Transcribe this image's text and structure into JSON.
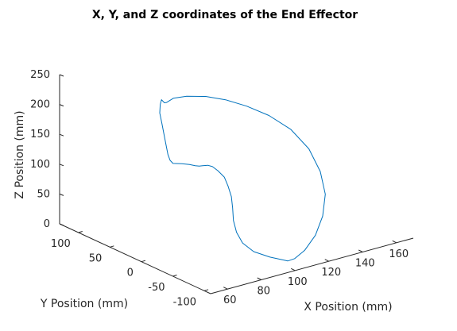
{
  "chart_data": {
    "type": "line",
    "title": "X, Y, and Z coordinates of the End Effector",
    "xlabel": "X Position (mm)",
    "ylabel": "Y Position (mm)",
    "zlabel": "Z Position (mm)",
    "xlim": [
      50,
      170
    ],
    "ylim": [
      -110,
      130
    ],
    "zlim": [
      0,
      250
    ],
    "x_ticks": [
      "60",
      "80",
      "100",
      "120",
      "140",
      "160"
    ],
    "y_ticks": [
      "-100",
      "-50",
      "0",
      "50",
      "100"
    ],
    "z_ticks": [
      "0",
      "50",
      "100",
      "150",
      "200",
      "250"
    ],
    "grid": false,
    "line_color": "#0072BD",
    "series": [
      {
        "points": [
          [
            105,
            -85,
            0
          ],
          [
            100,
            -70,
            3
          ],
          [
            96,
            -55,
            8
          ],
          [
            95,
            -40,
            16
          ],
          [
            97,
            -25,
            25
          ],
          [
            100,
            -12,
            36
          ],
          [
            104,
            0,
            48
          ],
          [
            107,
            10,
            60
          ],
          [
            108,
            18,
            73
          ],
          [
            108,
            24,
            85
          ],
          [
            105,
            26,
            97
          ],
          [
            101,
            24,
            108
          ],
          [
            96,
            18,
            117
          ],
          [
            90,
            10,
            125
          ],
          [
            85,
            2,
            132
          ],
          [
            80,
            -5,
            140
          ],
          [
            74,
            -12,
            150
          ],
          [
            68,
            -16,
            158
          ],
          [
            62,
            -18,
            164
          ],
          [
            61,
            -16,
            169
          ],
          [
            62,
            -10,
            175
          ],
          [
            66,
            4,
            182
          ],
          [
            70,
            18,
            190
          ],
          [
            74,
            32,
            198
          ],
          [
            78,
            46,
            205
          ],
          [
            82,
            56,
            211
          ],
          [
            85,
            62,
            214
          ],
          [
            86,
            60,
            209
          ],
          [
            88,
            62,
            207
          ],
          [
            92,
            62,
            211
          ],
          [
            98,
            57,
            212
          ],
          [
            106,
            48,
            210
          ],
          [
            114,
            38,
            203
          ],
          [
            122,
            26,
            192
          ],
          [
            130,
            12,
            177
          ],
          [
            137,
            -4,
            156
          ],
          [
            141,
            -22,
            129
          ],
          [
            141,
            -40,
            100
          ],
          [
            138,
            -56,
            72
          ],
          [
            132,
            -68,
            46
          ],
          [
            124,
            -78,
            25
          ],
          [
            115,
            -85,
            10
          ],
          [
            108,
            -88,
            3
          ],
          [
            105,
            -85,
            0
          ]
        ]
      }
    ]
  }
}
